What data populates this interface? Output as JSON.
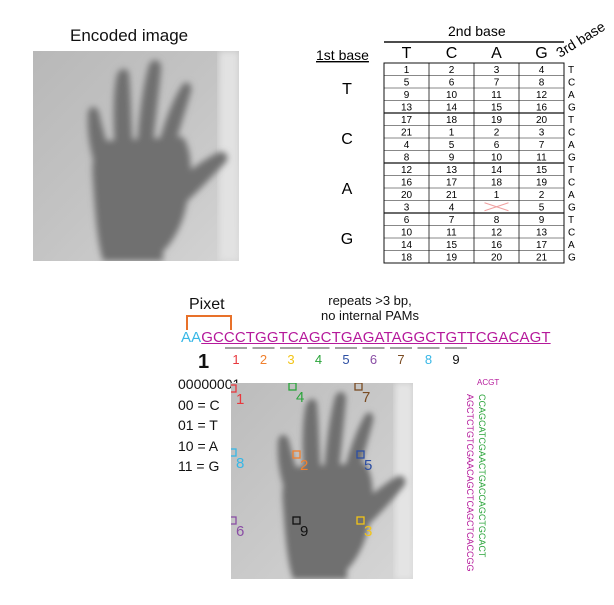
{
  "encoded_image_title": "Encoded image",
  "codon_table": {
    "second_base_header": "2nd base",
    "first_base_header": "1st base",
    "third_base_header": "3rd base",
    "columns": [
      "T",
      "C",
      "A",
      "G"
    ],
    "groups": [
      {
        "base": "T",
        "rows": [
          [
            "1",
            "2",
            "3",
            "4"
          ],
          [
            "5",
            "6",
            "7",
            "8"
          ],
          [
            "9",
            "10",
            "11",
            "12"
          ],
          [
            "13",
            "14",
            "15",
            "16"
          ]
        ]
      },
      {
        "base": "C",
        "rows": [
          [
            "17",
            "18",
            "19",
            "20"
          ],
          [
            "21",
            "1",
            "2",
            "3"
          ],
          [
            "4",
            "5",
            "6",
            "7"
          ],
          [
            "8",
            "9",
            "10",
            "11"
          ]
        ]
      },
      {
        "base": "A",
        "rows": [
          [
            "12",
            "13",
            "14",
            "15"
          ],
          [
            "16",
            "17",
            "18",
            "19"
          ],
          [
            "20",
            "21",
            "1",
            "2"
          ],
          [
            "3",
            "4",
            "",
            "5"
          ]
        ]
      },
      {
        "base": "G",
        "rows": [
          [
            "6",
            "7",
            "8",
            "9"
          ],
          [
            "10",
            "11",
            "12",
            "13"
          ],
          [
            "14",
            "15",
            "16",
            "17"
          ],
          [
            "18",
            "19",
            "20",
            "21"
          ]
        ]
      }
    ],
    "third_base_letters": [
      "T",
      "C",
      "A",
      "G"
    ]
  },
  "pixet_label": "Pixet",
  "repeats_note": [
    "repeats >3 bp,",
    "no internal PAMs"
  ],
  "sequence": {
    "prefix": "AA",
    "main": "GCCCTGGTCAGCTGAGATAGGCTGTTCGACAGT",
    "index_label": "1",
    "segment_numbers": [
      "1",
      "2",
      "3",
      "4",
      "5",
      "6",
      "7",
      "8",
      "9"
    ],
    "segment_colors": [
      "#e8383d",
      "#f0802e",
      "#f2c417",
      "#2aa43a",
      "#2d4fa3",
      "#8a4ea5",
      "#7a4b22",
      "#37b7e6",
      "#111111"
    ]
  },
  "encoding_key": [
    "00000001",
    "00 = C",
    "01 = T",
    "10 = A",
    "11 = G"
  ],
  "markers": [
    {
      "label": "1",
      "color": "#e8383d"
    },
    {
      "label": "4",
      "color": "#2aa43a"
    },
    {
      "label": "7",
      "color": "#7a4b22"
    },
    {
      "label": "8",
      "color": "#37b7e6"
    },
    {
      "label": "2",
      "color": "#f0802e"
    },
    {
      "label": "5",
      "color": "#2d4fa3"
    },
    {
      "label": "6",
      "color": "#8a4ea5"
    },
    {
      "label": "9",
      "color": "#111111"
    },
    {
      "label": "3",
      "color": "#f2c417"
    }
  ],
  "hairpin": {
    "left_strand": "AGCTCTGTCGAACAGCTCAGCTCACCGG",
    "right_strand": "CCAGCATCGAACTGACCAGCTGCACT",
    "loop_top": "ACGT"
  },
  "colors": {
    "magenta": "#b5199b",
    "cyan": "#37b7e6",
    "orange": "#e8712a",
    "strike": "#f0a0a0"
  }
}
